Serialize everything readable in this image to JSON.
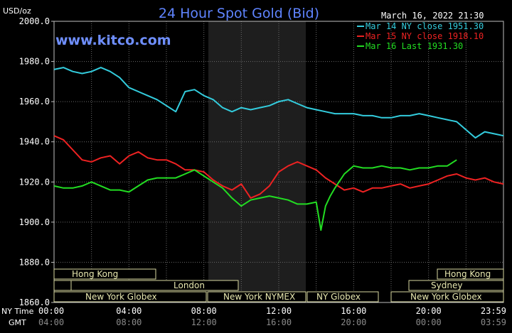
{
  "chart_data": {
    "type": "line",
    "title": "24 Hour Spot Gold (Bid)",
    "watermark": "www.kitco.com",
    "ylabel": "USD/oz",
    "timestamp": "March 16, 2022 21:30",
    "ylim": [
      1860,
      2000
    ],
    "y_ticks": [
      "2000.0",
      "1980.0",
      "1960.0",
      "1940.0",
      "1920.0",
      "1900.0",
      "1880.0",
      "1860.0"
    ],
    "x_row1_label": "NY Time",
    "x_row2_label": "GMT",
    "x_ticks_ny": [
      "00:00",
      "04:00",
      "08:00",
      "12:00",
      "16:00",
      "20:00",
      "23:59"
    ],
    "x_ticks_gmt": [
      "04:00",
      "08:00",
      "12:00",
      "16:00",
      "20:00",
      "00:00",
      "03:59"
    ],
    "grid": true,
    "legend_position": "top-right",
    "sessions": {
      "hong_kong_1": "Hong Kong",
      "london": "London",
      "ny_globex_1": "New York Globex",
      "ny_nymex": "New York NYMEX",
      "ny_globex_2": "NY Globex",
      "sydney": "Sydney",
      "hong_kong_2": "Hong Kong",
      "ny_globex_3": "New York Globex"
    },
    "series": [
      {
        "name": "Mar 14 NY close 1951.30",
        "color": "#33ccdd",
        "x": [
          0,
          0.5,
          1,
          1.5,
          2,
          2.5,
          3,
          3.5,
          4,
          4.5,
          5,
          5.5,
          6,
          6.5,
          7,
          7.5,
          8,
          8.5,
          9,
          9.5,
          10,
          10.5,
          11,
          11.5,
          12,
          12.5,
          13,
          13.5,
          14,
          14.5,
          15,
          15.5,
          16,
          16.5,
          17,
          17.5,
          18,
          18.5,
          19,
          19.5,
          20,
          20.5,
          21,
          21.5,
          22,
          22.5,
          23,
          23.5,
          24
        ],
        "values": [
          1976,
          1977,
          1975,
          1974,
          1975,
          1977,
          1975,
          1972,
          1967,
          1965,
          1963,
          1961,
          1958,
          1955,
          1965,
          1966,
          1963,
          1961,
          1957,
          1955,
          1957,
          1956,
          1957,
          1958,
          1960,
          1961,
          1959,
          1957,
          1956,
          1955,
          1954,
          1954,
          1954,
          1953,
          1953,
          1952,
          1952,
          1953,
          1953,
          1954,
          1953,
          1952,
          1951,
          1950,
          1946,
          1942,
          1945,
          1944,
          1943
        ]
      },
      {
        "name": "Mar 15 NY close 1918.10",
        "color": "#ee2222",
        "x": [
          0,
          0.5,
          1,
          1.5,
          2,
          2.5,
          3,
          3.5,
          4,
          4.5,
          5,
          5.5,
          6,
          6.5,
          7,
          7.5,
          8,
          8.5,
          9,
          9.5,
          10,
          10.5,
          11,
          11.5,
          12,
          12.5,
          13,
          13.5,
          14,
          14.5,
          15,
          15.5,
          16,
          16.5,
          17,
          17.5,
          18,
          18.5,
          19,
          19.5,
          20,
          20.5,
          21,
          21.5,
          22,
          22.5,
          23,
          23.5,
          24
        ],
        "values": [
          1943,
          1941,
          1936,
          1931,
          1930,
          1932,
          1933,
          1929,
          1933,
          1935,
          1932,
          1931,
          1931,
          1929,
          1926,
          1926,
          1925,
          1921,
          1918,
          1916,
          1919,
          1912,
          1914,
          1918,
          1925,
          1928,
          1930,
          1928,
          1926,
          1922,
          1919,
          1916,
          1917,
          1915,
          1917,
          1917,
          1918,
          1919,
          1917,
          1918,
          1919,
          1921,
          1923,
          1924,
          1922,
          1921,
          1922,
          1920,
          1919
        ]
      },
      {
        "name": "Mar 16 Last 1931.30",
        "color": "#22dd22",
        "x": [
          0,
          0.5,
          1,
          1.5,
          2,
          2.5,
          3,
          3.5,
          4,
          4.5,
          5,
          5.5,
          6,
          6.5,
          7,
          7.5,
          8,
          8.5,
          9,
          9.5,
          10,
          10.5,
          11,
          11.5,
          12,
          12.5,
          13,
          13.5,
          14,
          14.25,
          14.5,
          14.75,
          15,
          15.5,
          16,
          16.5,
          17,
          17.5,
          18,
          18.5,
          19,
          19.5,
          20,
          20.5,
          21,
          21.5
        ],
        "values": [
          1918,
          1917,
          1917,
          1918,
          1920,
          1918,
          1916,
          1916,
          1915,
          1918,
          1921,
          1922,
          1922,
          1922,
          1924,
          1926,
          1923,
          1920,
          1917,
          1912,
          1908,
          1911,
          1912,
          1913,
          1912,
          1911,
          1909,
          1909,
          1910,
          1896,
          1908,
          1913,
          1917,
          1924,
          1928,
          1927,
          1927,
          1928,
          1927,
          1927,
          1926,
          1927,
          1927,
          1928,
          1928,
          1931
        ]
      }
    ]
  }
}
